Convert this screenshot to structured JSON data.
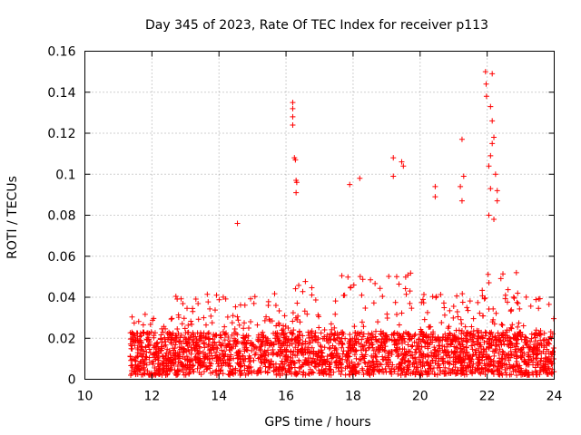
{
  "chart_data": {
    "type": "scatter",
    "title": "Day 345 of 2023, Rate Of TEC Index for receiver p113",
    "xlabel": "GPS time / hours",
    "ylabel": "ROTI / TECUs",
    "xlim": [
      10,
      24
    ],
    "ylim": [
      0,
      0.16
    ],
    "xticks": [
      10,
      12,
      14,
      16,
      18,
      20,
      22,
      24
    ],
    "yticks": [
      0,
      0.02,
      0.04,
      0.06,
      0.08,
      0.1,
      0.12,
      0.14,
      0.16
    ],
    "xtick_labels": [
      "10",
      "12",
      "14",
      "16",
      "18",
      "20",
      "22",
      "24"
    ],
    "ytick_labels": [
      "0",
      "0.02",
      "0.04",
      "0.06",
      "0.08",
      "0.1",
      "0.12",
      "0.14",
      "0.16"
    ],
    "grid": true,
    "marker": "+",
    "color": "#ff0000",
    "x_range_of_data": [
      11.35,
      24.0
    ],
    "typical_band": [
      0.002,
      0.03
    ],
    "notable_points": [
      {
        "x": 14.55,
        "y": 0.076
      },
      {
        "x": 16.2,
        "y": 0.135
      },
      {
        "x": 16.2,
        "y": 0.132
      },
      {
        "x": 16.2,
        "y": 0.128
      },
      {
        "x": 16.2,
        "y": 0.124
      },
      {
        "x": 16.25,
        "y": 0.108
      },
      {
        "x": 16.28,
        "y": 0.107
      },
      {
        "x": 16.3,
        "y": 0.097
      },
      {
        "x": 16.32,
        "y": 0.096
      },
      {
        "x": 16.3,
        "y": 0.091
      },
      {
        "x": 17.9,
        "y": 0.095
      },
      {
        "x": 18.2,
        "y": 0.098
      },
      {
        "x": 19.2,
        "y": 0.108
      },
      {
        "x": 19.2,
        "y": 0.099
      },
      {
        "x": 19.45,
        "y": 0.106
      },
      {
        "x": 19.5,
        "y": 0.104
      },
      {
        "x": 20.45,
        "y": 0.094
      },
      {
        "x": 20.45,
        "y": 0.089
      },
      {
        "x": 21.25,
        "y": 0.117
      },
      {
        "x": 21.3,
        "y": 0.099
      },
      {
        "x": 21.2,
        "y": 0.094
      },
      {
        "x": 21.25,
        "y": 0.087
      },
      {
        "x": 21.95,
        "y": 0.15
      },
      {
        "x": 22.15,
        "y": 0.149
      },
      {
        "x": 21.97,
        "y": 0.144
      },
      {
        "x": 21.98,
        "y": 0.138
      },
      {
        "x": 22.1,
        "y": 0.133
      },
      {
        "x": 22.15,
        "y": 0.126
      },
      {
        "x": 22.2,
        "y": 0.118
      },
      {
        "x": 22.15,
        "y": 0.115
      },
      {
        "x": 22.1,
        "y": 0.109
      },
      {
        "x": 22.05,
        "y": 0.104
      },
      {
        "x": 22.25,
        "y": 0.1
      },
      {
        "x": 22.1,
        "y": 0.093
      },
      {
        "x": 22.3,
        "y": 0.092
      },
      {
        "x": 22.3,
        "y": 0.087
      },
      {
        "x": 22.05,
        "y": 0.08
      },
      {
        "x": 22.2,
        "y": 0.078
      }
    ]
  }
}
